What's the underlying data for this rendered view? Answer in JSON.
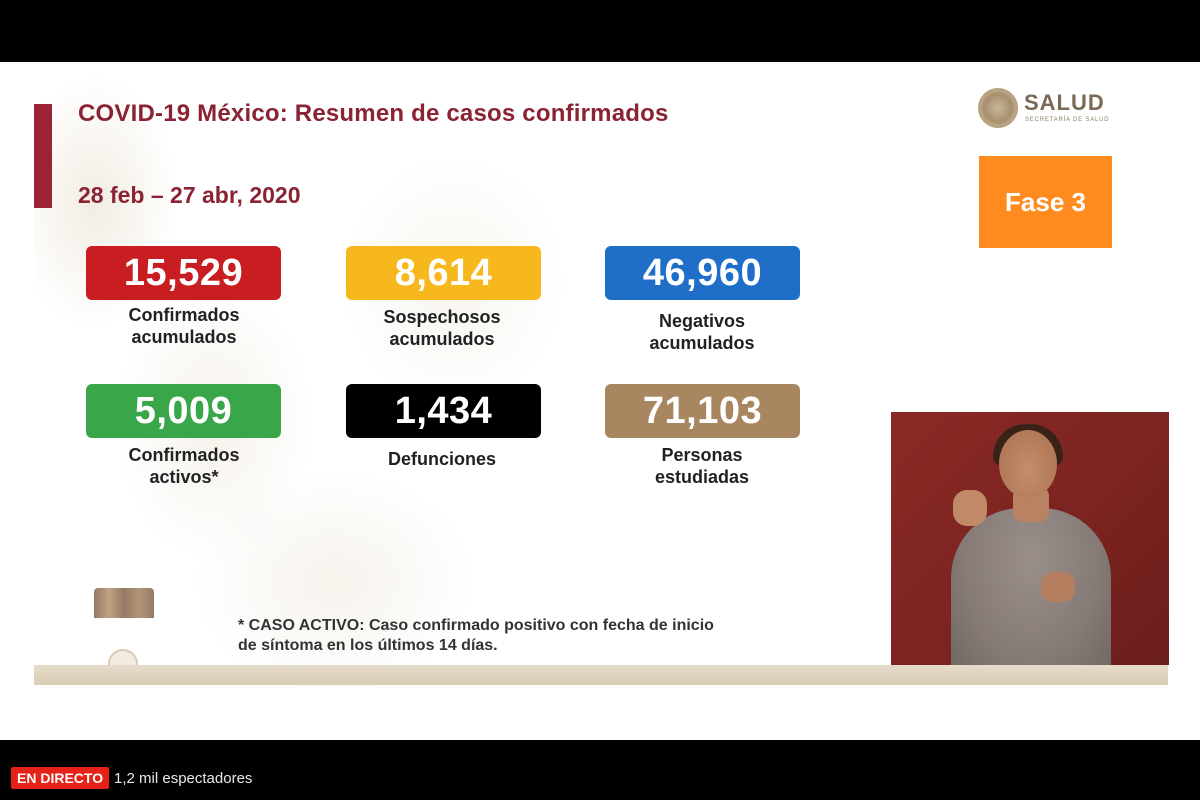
{
  "slide": {
    "title": "COVID-19 México: Resumen de casos confirmados",
    "date_range": "28 feb – 27 abr, 2020",
    "logo": {
      "name": "SALUD",
      "subtitle": "SECRETARÍA DE SALUD"
    },
    "phase": "Fase 3",
    "stats": [
      {
        "value": "15,529",
        "label_line1": "Confirmados",
        "label_line2": "acumulados",
        "color": "#c81e22"
      },
      {
        "value": "8,614",
        "label_line1": "Sospechosos",
        "label_line2": "acumulados",
        "color": "#f7b81e"
      },
      {
        "value": "46,960",
        "label_line1": "Negativos",
        "label_line2": "acumulados",
        "color": "#1f6fc8"
      },
      {
        "value": "5,009",
        "label_line1": "Confirmados",
        "label_line2": "activos*",
        "color": "#3aa64a"
      },
      {
        "value": "1,434",
        "label_line1": "Defunciones",
        "label_line2": "",
        "color": "#000000"
      },
      {
        "value": "71,103",
        "label_line1": "Personas",
        "label_line2": "estudiadas",
        "color": "#a88660"
      }
    ],
    "footnote_line1": "* CASO ACTIVO: Caso confirmado positivo con fecha de inicio",
    "footnote_line2": "de síntoma en los últimos 14 días."
  },
  "stream": {
    "live_label": "EN DIRECTO",
    "viewers": "1,2 mil espectadores"
  },
  "colors": {
    "title": "#8a2333",
    "phase": "#ff8b1e",
    "live": "#e62117"
  }
}
